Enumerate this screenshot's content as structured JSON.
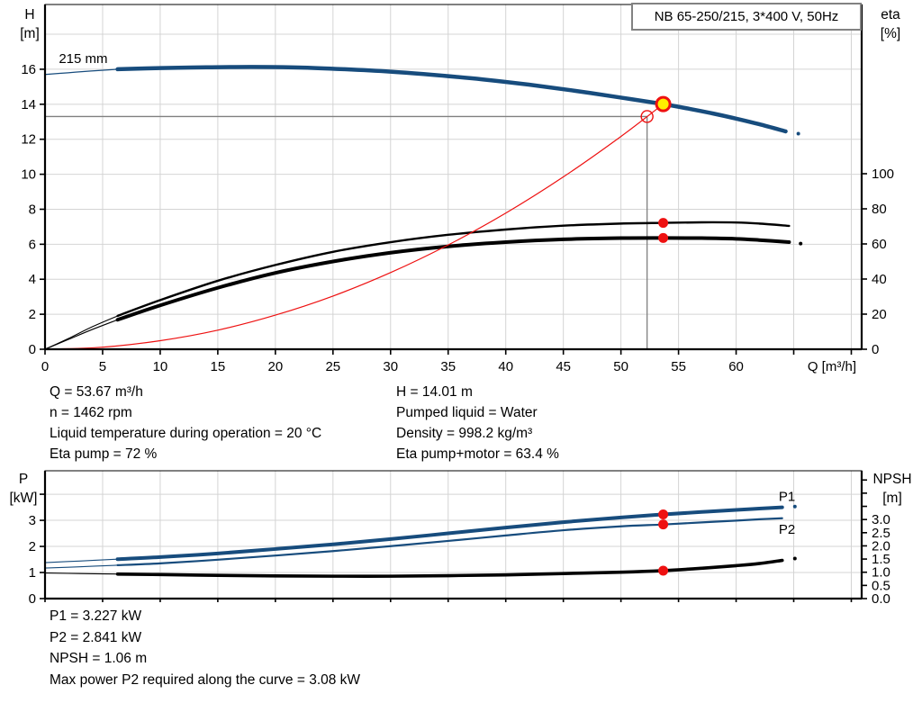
{
  "title_box": "NB 65-250/215, 3*400 V, 50Hz",
  "colors": {
    "curve_blue": "#174c7d",
    "red": "#ee1111",
    "duty_yellow": "#ffee00",
    "grid": "#d4d4d4",
    "guide": "#808080",
    "axis": "#000000"
  },
  "duty_text": {
    "left": [
      "Q = 53.67 m³/h",
      "n = 1462 rpm",
      "Liquid temperature during operation = 20 °C",
      "Eta pump = 72 %"
    ],
    "right": [
      "H = 14.01 m",
      "Pumped liquid = Water",
      "Density = 998.2 kg/m³",
      "Eta pump+motor = 63.4 %"
    ]
  },
  "power_text": [
    "P1 = 3.227 kW",
    "P2 = 2.841 kW",
    "NPSH = 1.06 m",
    "Max power P2 required along the curve = 3.08 kW"
  ],
  "chart_data": [
    {
      "type": "line",
      "name": "hq-eta-chart",
      "title": "NB 65-250/215, 3*400 V, 50Hz",
      "xlabel": "Q [m³/h]",
      "ylabel": "H [m]",
      "ylabel_lines": [
        "H",
        "[m]"
      ],
      "y2label": "eta [%]",
      "y2label_lines": [
        "eta",
        "[%]"
      ],
      "xlim": [
        0,
        70.9
      ],
      "ylim": [
        0,
        19.7
      ],
      "y2lim": [
        0,
        196.4
      ],
      "x_tick_vals": [
        0,
        5,
        10,
        15,
        20,
        25,
        30,
        35,
        40,
        45,
        50,
        55,
        60,
        65,
        70
      ],
      "x_tick_labels": [
        "0",
        "5",
        "10",
        "15",
        "20",
        "25",
        "30",
        "35",
        "40",
        "45",
        "50",
        "55",
        "60",
        "",
        ""
      ],
      "x_tick_len": 6,
      "y_tick_vals": [
        0,
        2,
        4,
        6,
        8,
        10,
        12,
        14,
        16
      ],
      "y_tick_labels": [
        "0",
        "2",
        "4",
        "6",
        "8",
        "10",
        "12",
        "14",
        "16"
      ],
      "y_grid": [
        2,
        4,
        6,
        8,
        10,
        12,
        14,
        16,
        18
      ],
      "y2_tick_vals": [
        0,
        20,
        40,
        60,
        80,
        100
      ],
      "y2_tick_labels": [
        "0",
        "20",
        "40",
        "60",
        "80",
        "100"
      ],
      "series": [
        {
          "name": "pump-curve-215mm",
          "label": "215 mm",
          "axis": "y",
          "color": "#174c7d",
          "width": 4.5,
          "thin_until": 6.3,
          "points": [
            [
              0,
              15.7
            ],
            [
              2,
              15.8
            ],
            [
              4,
              15.9
            ],
            [
              6.3,
              16.0
            ],
            [
              10,
              16.07
            ],
            [
              14,
              16.11
            ],
            [
              18,
              16.13
            ],
            [
              22,
              16.1
            ],
            [
              26,
              16.0
            ],
            [
              30,
              15.86
            ],
            [
              34,
              15.66
            ],
            [
              38,
              15.42
            ],
            [
              42,
              15.12
            ],
            [
              46,
              14.77
            ],
            [
              50,
              14.38
            ],
            [
              53.67,
              14.01
            ],
            [
              56,
              13.73
            ],
            [
              58,
              13.47
            ],
            [
              60,
              13.18
            ],
            [
              62,
              12.86
            ],
            [
              64.3,
              12.45
            ]
          ]
        },
        {
          "name": "eta-pump-curve",
          "label": "eta pump",
          "axis": "y2",
          "color": "#000000",
          "width": 2.4,
          "thin_until": 6.3,
          "points": [
            [
              0,
              0
            ],
            [
              2,
              6
            ],
            [
              4,
              12.5
            ],
            [
              6.3,
              19
            ],
            [
              10,
              28
            ],
            [
              15,
              39
            ],
            [
              20,
              48
            ],
            [
              25,
              55.5
            ],
            [
              30,
              61
            ],
            [
              35,
              65.2
            ],
            [
              40,
              68.2
            ],
            [
              45,
              70.4
            ],
            [
              50,
              71.6
            ],
            [
              53.67,
              72
            ],
            [
              57,
              72.3
            ],
            [
              60,
              72.2
            ],
            [
              62,
              71.6
            ],
            [
              64.6,
              70.3
            ]
          ]
        },
        {
          "name": "eta-pump-motor-curve",
          "label": "eta pump+motor",
          "axis": "y2",
          "color": "#000000",
          "width": 4,
          "thin_until": 6.3,
          "points": [
            [
              0,
              0
            ],
            [
              2,
              5.5
            ],
            [
              4,
              11
            ],
            [
              6.3,
              16.8
            ],
            [
              10,
              25
            ],
            [
              15,
              35
            ],
            [
              20,
              43.5
            ],
            [
              25,
              50
            ],
            [
              30,
              55
            ],
            [
              35,
              58.6
            ],
            [
              40,
              61
            ],
            [
              45,
              62.6
            ],
            [
              50,
              63.3
            ],
            [
              53.67,
              63.4
            ],
            [
              57,
              63.3
            ],
            [
              60,
              62.9
            ],
            [
              62,
              62.2
            ],
            [
              64.6,
              61
            ]
          ]
        },
        {
          "name": "system-curve",
          "label": "system curve",
          "axis": "y",
          "color": "#ee1111",
          "width": 1.2,
          "points": [
            [
              0,
              0
            ],
            [
              5,
              0.12
            ],
            [
              10,
              0.49
            ],
            [
              15,
              1.09
            ],
            [
              20,
              1.95
            ],
            [
              25,
              3.04
            ],
            [
              30,
              4.38
            ],
            [
              35,
              5.96
            ],
            [
              40,
              7.78
            ],
            [
              45,
              9.85
            ],
            [
              50,
              12.16
            ],
            [
              53.67,
              14.01
            ]
          ]
        }
      ],
      "guides": [
        {
          "name": "duty-guide-horizontal",
          "type": "h",
          "y": 13.3,
          "x_to": 52.27
        },
        {
          "name": "duty-guide-vertical",
          "type": "v",
          "x": 52.27,
          "y_from": 13.3
        }
      ],
      "markers": [
        {
          "name": "duty-point",
          "x": 53.67,
          "y": 14.01,
          "axis": "y",
          "r": 7.5,
          "fill": "#ffee00",
          "stroke": "#ee1111",
          "sw": 3
        },
        {
          "name": "system-open-circle",
          "x": 52.27,
          "y": 13.3,
          "axis": "y",
          "r": 6.5,
          "fill": "none",
          "stroke": "#ee1111",
          "sw": 1.4
        },
        {
          "name": "eta-pump-duty-dot",
          "x": 53.67,
          "y": 72,
          "axis": "y2",
          "r": 5.5,
          "fill": "#ee1111",
          "stroke": "none",
          "sw": 0
        },
        {
          "name": "eta-pump-motor-duty-dot",
          "x": 53.67,
          "y": 63.4,
          "axis": "y2",
          "r": 5.5,
          "fill": "#ee1111",
          "stroke": "none",
          "sw": 0
        },
        {
          "name": "curve-end-dot",
          "x": 65.4,
          "y": 12.32,
          "axis": "y",
          "r": 2,
          "fill": "#174c7d",
          "stroke": "none",
          "sw": 0
        },
        {
          "name": "curve-end-dot",
          "x": 65.6,
          "y": 60.2,
          "axis": "y2",
          "r": 2,
          "fill": "#000000",
          "stroke": "none",
          "sw": 0
        }
      ],
      "annotations": [
        {
          "name": "impeller-size-label",
          "text": "215 mm",
          "x": 1.2,
          "y": 16.35,
          "axis": "y",
          "color": "#000000"
        }
      ]
    },
    {
      "type": "line",
      "name": "power-npsh-chart",
      "xlabel": "",
      "ylabel": "P [kW]",
      "ylabel_lines": [
        "P",
        "[kW]"
      ],
      "y2label": "NPSH [m]",
      "y2label_lines": [
        "NPSH",
        "[m]"
      ],
      "xlim": [
        0,
        70.9
      ],
      "ylim": [
        0,
        4.9
      ],
      "y2lim": [
        0,
        4.85
      ],
      "x_tick_vals": [
        0,
        5,
        10,
        15,
        20,
        25,
        30,
        35,
        40,
        45,
        50,
        55,
        60,
        65,
        70
      ],
      "x_tick_labels": [
        "",
        "",
        "",
        "",
        "",
        "",
        "",
        "",
        "",
        "",
        "",
        "",
        "",
        "",
        ""
      ],
      "x_tick_len": 4,
      "y_tick_vals": [
        0,
        1,
        2,
        3,
        4
      ],
      "y_tick_labels": [
        "0",
        "1",
        "2",
        "3",
        ""
      ],
      "y_grid": [
        1,
        2,
        3,
        4
      ],
      "y2_tick_vals": [
        0,
        0.5,
        1,
        1.5,
        2,
        2.5,
        3,
        3.5,
        4,
        4.5
      ],
      "y2_tick_labels": [
        "0.0",
        "0.5",
        "1.0",
        "1.5",
        "2.0",
        "2.5",
        "3.0",
        "",
        "",
        ""
      ],
      "series": [
        {
          "name": "p1-curve",
          "label": "P1",
          "axis": "y",
          "color": "#174c7d",
          "width": 4,
          "thin_until": 6.3,
          "points": [
            [
              0,
              1.38
            ],
            [
              3,
              1.44
            ],
            [
              6.3,
              1.51
            ],
            [
              10,
              1.59
            ],
            [
              15,
              1.73
            ],
            [
              20,
              1.9
            ],
            [
              25,
              2.08
            ],
            [
              30,
              2.28
            ],
            [
              35,
              2.5
            ],
            [
              40,
              2.72
            ],
            [
              45,
              2.93
            ],
            [
              50,
              3.11
            ],
            [
              53.67,
              3.227
            ],
            [
              57,
              3.32
            ],
            [
              60,
              3.4
            ],
            [
              62,
              3.45
            ],
            [
              64,
              3.5
            ]
          ]
        },
        {
          "name": "p2-curve",
          "label": "P2",
          "axis": "y",
          "color": "#174c7d",
          "width": 2.2,
          "thin_until": 6.3,
          "points": [
            [
              0,
              1.17
            ],
            [
              3,
              1.22
            ],
            [
              6.3,
              1.28
            ],
            [
              10,
              1.35
            ],
            [
              15,
              1.49
            ],
            [
              20,
              1.65
            ],
            [
              25,
              1.82
            ],
            [
              30,
              2.01
            ],
            [
              35,
              2.21
            ],
            [
              40,
              2.42
            ],
            [
              45,
              2.62
            ],
            [
              50,
              2.77
            ],
            [
              53.67,
              2.841
            ],
            [
              57,
              2.92
            ],
            [
              60,
              2.99
            ],
            [
              62,
              3.04
            ],
            [
              64,
              3.08
            ]
          ]
        },
        {
          "name": "npsh-curve",
          "label": "NPSH",
          "axis": "y2",
          "color": "#000000",
          "width": 3.6,
          "thin_until": 6.3,
          "points": [
            [
              0,
              0.97
            ],
            [
              3,
              0.95
            ],
            [
              6.3,
              0.93
            ],
            [
              10,
              0.91
            ],
            [
              15,
              0.88
            ],
            [
              20,
              0.86
            ],
            [
              25,
              0.85
            ],
            [
              30,
              0.85
            ],
            [
              35,
              0.87
            ],
            [
              40,
              0.9
            ],
            [
              45,
              0.95
            ],
            [
              50,
              1.0
            ],
            [
              53.67,
              1.06
            ],
            [
              57,
              1.15
            ],
            [
              60,
              1.25
            ],
            [
              62,
              1.33
            ],
            [
              64,
              1.45
            ]
          ]
        }
      ],
      "guides": [],
      "markers": [
        {
          "name": "p1-duty-dot",
          "x": 53.67,
          "y": 3.227,
          "axis": "y",
          "r": 5.5,
          "fill": "#ee1111",
          "stroke": "none",
          "sw": 0
        },
        {
          "name": "p2-duty-dot",
          "x": 53.67,
          "y": 2.841,
          "axis": "y",
          "r": 5.5,
          "fill": "#ee1111",
          "stroke": "none",
          "sw": 0
        },
        {
          "name": "npsh-duty-dot",
          "x": 53.67,
          "y": 1.06,
          "axis": "y2",
          "r": 5.5,
          "fill": "#ee1111",
          "stroke": "none",
          "sw": 0
        },
        {
          "name": "curve-end-dot",
          "x": 65.1,
          "y": 3.53,
          "axis": "y",
          "r": 2,
          "fill": "#174c7d",
          "stroke": "none",
          "sw": 0
        },
        {
          "name": "curve-end-dot",
          "x": 65.1,
          "y": 1.52,
          "axis": "y2",
          "r": 2,
          "fill": "#000000",
          "stroke": "none",
          "sw": 0
        }
      ],
      "annotations": [
        {
          "name": "p1-curve-label",
          "text": "P1",
          "x": 63.7,
          "y": 3.75,
          "axis": "y",
          "color": "#174c7d"
        },
        {
          "name": "p2-curve-label",
          "text": "P2",
          "x": 63.7,
          "y": 2.49,
          "axis": "y",
          "color": "#174c7d"
        }
      ]
    }
  ]
}
